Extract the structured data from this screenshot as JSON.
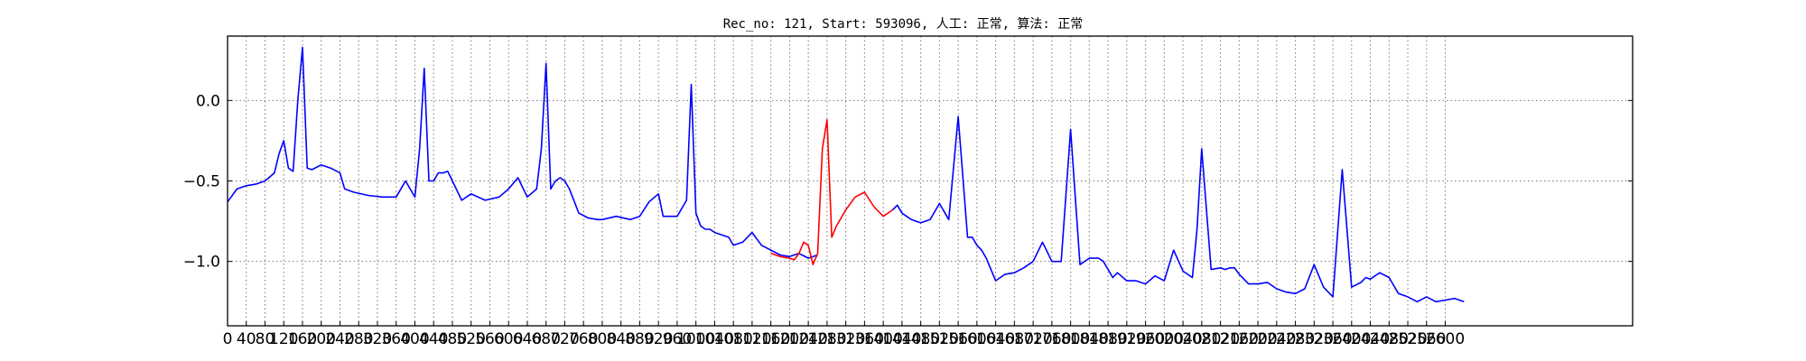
{
  "chart_data": {
    "type": "line",
    "title": "Rec_no: 121, Start: 593096, 人工: 正常, 算法: 正常",
    "xlabel": "",
    "ylabel": "",
    "xlim": [
      0,
      3000
    ],
    "ylim": [
      -1.4,
      0.4
    ],
    "grid": true,
    "y_ticks": [
      0.0,
      -0.5,
      -1.0
    ],
    "y_tick_labels": [
      "0.0",
      "−0.5",
      "−1.0"
    ],
    "x_ticks": [
      0,
      40,
      80,
      120,
      160,
      200,
      240,
      280,
      320,
      360,
      400,
      440,
      480,
      520,
      560,
      600,
      640,
      680,
      720,
      760,
      800,
      840,
      880,
      920,
      960,
      1000,
      1040,
      1080,
      1120,
      1160,
      1200,
      1240,
      1280,
      1320,
      1360,
      1400,
      1440,
      1480,
      1520,
      1560,
      1600,
      1640,
      1680,
      1720,
      1760,
      1800,
      1840,
      1880,
      1920,
      1960,
      2000,
      2040,
      2080,
      2120,
      2160,
      2200,
      2240,
      2280,
      2320,
      2360,
      2400,
      2440,
      2480,
      2520,
      2560,
      2600
    ],
    "series": [
      {
        "color": "#0000ff",
        "x": [
          0,
          20,
          40,
          60,
          80,
          100,
          110,
          120,
          130,
          140,
          150,
          160,
          170,
          180,
          200,
          220,
          240,
          250,
          270,
          300,
          330,
          360,
          380,
          400,
          410,
          420,
          430,
          440,
          450,
          460,
          470,
          480,
          500,
          520,
          550,
          580,
          600,
          620,
          640,
          660,
          670,
          680,
          690,
          700,
          710,
          720,
          730,
          750,
          770,
          790,
          800,
          830,
          860,
          880,
          900,
          920,
          930,
          960,
          980,
          990,
          1000,
          1010,
          1020,
          1030,
          1040,
          1070,
          1080,
          1100,
          1120,
          1140,
          1160,
          1180,
          1200,
          1220,
          1240,
          1260
        ],
        "y": [
          -0.63,
          -0.55,
          -0.53,
          -0.52,
          -0.5,
          -0.45,
          -0.33,
          -0.25,
          -0.42,
          -0.44,
          0.0,
          0.33,
          -0.42,
          -0.43,
          -0.4,
          -0.42,
          -0.45,
          -0.55,
          -0.57,
          -0.59,
          -0.6,
          -0.6,
          -0.5,
          -0.6,
          -0.3,
          0.2,
          -0.5,
          -0.5,
          -0.45,
          -0.45,
          -0.44,
          -0.5,
          -0.62,
          -0.58,
          -0.62,
          -0.6,
          -0.55,
          -0.48,
          -0.6,
          -0.55,
          -0.3,
          0.23,
          -0.55,
          -0.5,
          -0.48,
          -0.5,
          -0.55,
          -0.7,
          -0.73,
          -0.74,
          -0.74,
          -0.72,
          -0.74,
          -0.72,
          -0.63,
          -0.58,
          -0.72,
          -0.72,
          -0.62,
          0.1,
          -0.7,
          -0.78,
          -0.8,
          -0.8,
          -0.82,
          -0.85,
          -0.9,
          -0.88,
          -0.82,
          -0.9,
          -0.93,
          -0.96,
          -0.97,
          -0.95,
          -0.98,
          -0.96
        ]
      },
      {
        "color": "#ff0000",
        "x": [
          1160,
          1180,
          1200,
          1210,
          1220,
          1230,
          1240,
          1250,
          1260,
          1270,
          1280,
          1290,
          1300,
          1320,
          1340,
          1360,
          1380,
          1400,
          1420
        ],
        "y": [
          -0.95,
          -0.97,
          -0.98,
          -0.99,
          -0.95,
          -0.88,
          -0.9,
          -1.02,
          -0.95,
          -0.3,
          -0.12,
          -0.85,
          -0.78,
          -0.68,
          -0.6,
          -0.57,
          -0.66,
          -0.72,
          -0.68
        ]
      },
      {
        "color": "#0000ff",
        "x": [
          1420,
          1430,
          1440,
          1460,
          1480,
          1500,
          1520,
          1540,
          1560,
          1580,
          1590,
          1600,
          1610,
          1620,
          1640,
          1660,
          1680,
          1700,
          1720,
          1740,
          1760,
          1780,
          1800,
          1820,
          1840,
          1860,
          1870,
          1880,
          1890,
          1900,
          1920,
          1940,
          1960,
          1980,
          2000,
          2020,
          2040,
          2060,
          2070,
          2080,
          2100,
          2120,
          2130,
          2140,
          2150,
          2160,
          2180,
          2200,
          2220,
          2240,
          2260,
          2280,
          2300,
          2320,
          2340,
          2360,
          2380,
          2400,
          2420,
          2430,
          2440,
          2450,
          2460,
          2480,
          2500,
          2520,
          2540,
          2560,
          2580,
          2600,
          2620,
          2640
        ],
        "y": [
          -0.68,
          -0.65,
          -0.7,
          -0.74,
          -0.76,
          -0.74,
          -0.64,
          -0.74,
          -0.1,
          -0.85,
          -0.85,
          -0.9,
          -0.93,
          -0.98,
          -1.12,
          -1.08,
          -1.07,
          -1.04,
          -1.0,
          -0.88,
          -1.0,
          -1.0,
          -0.18,
          -1.02,
          -0.98,
          -0.98,
          -1.0,
          -1.05,
          -1.1,
          -1.07,
          -1.12,
          -1.12,
          -1.14,
          -1.09,
          -1.12,
          -0.93,
          -1.06,
          -1.1,
          -0.8,
          -0.3,
          -1.05,
          -1.04,
          -1.05,
          -1.04,
          -1.04,
          -1.08,
          -1.14,
          -1.14,
          -1.13,
          -1.17,
          -1.19,
          -1.2,
          -1.17,
          -1.02,
          -1.16,
          -1.22,
          -0.43,
          -1.16,
          -1.13,
          -1.1,
          -1.11,
          -1.09,
          -1.07,
          -1.1,
          -1.2,
          -1.22,
          -1.25,
          -1.22,
          -1.25,
          -1.24,
          -1.23,
          -1.25
        ]
      }
    ]
  }
}
